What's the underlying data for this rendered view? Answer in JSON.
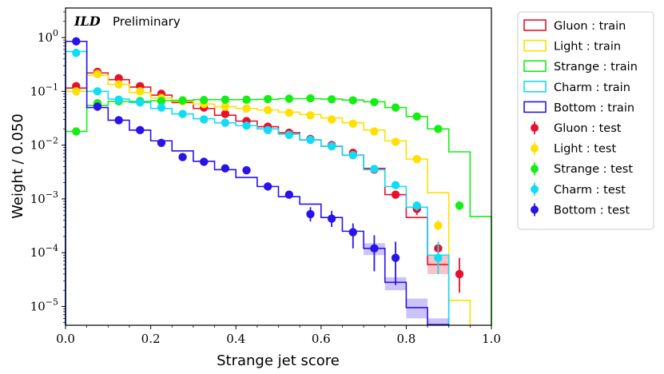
{
  "chart_data": {
    "type": "histogram",
    "xlabel": "Strange jet score",
    "ylabel": "Weight / 0.050",
    "xlim": [
      0.0,
      1.0
    ],
    "ylim_log10": [
      -5.35,
      0.55
    ],
    "yscale": "log",
    "xticks": [
      0.0,
      0.2,
      0.4,
      0.6,
      0.8,
      1.0
    ],
    "xtick_labels": [
      "0.0",
      "0.2",
      "0.4",
      "0.6",
      "0.8",
      "1.0"
    ],
    "yticks": [
      {
        "exp": 0,
        "base": "10",
        "sup": "0"
      },
      {
        "exp": -1,
        "base": "10",
        "sup": "−1"
      },
      {
        "exp": -2,
        "base": "10",
        "sup": "−2"
      },
      {
        "exp": -3,
        "base": "10",
        "sup": "−3"
      },
      {
        "exp": -4,
        "base": "10",
        "sup": "−4"
      },
      {
        "exp": -5,
        "base": "10",
        "sup": "−5"
      }
    ],
    "annotation": {
      "experiment": "ILD",
      "status": "Preliminary"
    },
    "bin_edges": [
      0.0,
      0.05,
      0.1,
      0.15,
      0.2,
      0.25,
      0.3,
      0.35,
      0.4,
      0.45,
      0.5,
      0.55,
      0.6,
      0.65,
      0.7,
      0.75,
      0.8,
      0.85,
      0.9,
      0.95,
      1.0
    ],
    "train": [
      {
        "name": "Gluon : train",
        "color": "#e8112d",
        "values": [
          0.115,
          0.22,
          0.165,
          0.12,
          0.085,
          0.062,
          0.048,
          0.036,
          0.028,
          0.022,
          0.017,
          0.0125,
          0.0095,
          0.0065,
          0.0037,
          0.0012,
          0.00045,
          6e-05,
          null,
          null
        ]
      },
      {
        "name": "Light : train",
        "color": "#ffe000",
        "values": [
          0.1,
          0.2,
          0.135,
          0.095,
          0.075,
          0.065,
          0.058,
          0.052,
          0.048,
          0.045,
          0.041,
          0.037,
          0.032,
          0.026,
          0.019,
          0.012,
          0.0055,
          0.0013,
          1.3e-05,
          null
        ]
      },
      {
        "name": "Strange : train",
        "color": "#15ee15",
        "values": [
          0.018,
          0.055,
          0.065,
          0.065,
          0.067,
          0.068,
          0.07,
          0.07,
          0.07,
          0.071,
          0.073,
          0.073,
          0.072,
          0.069,
          0.064,
          0.05,
          0.034,
          0.02,
          0.0075,
          0.00047
        ]
      },
      {
        "name": "Charm : train",
        "color": "#12dcf4",
        "values": [
          0.55,
          0.1,
          0.072,
          0.062,
          0.048,
          0.038,
          0.031,
          0.026,
          0.023,
          0.02,
          0.016,
          0.0125,
          0.0095,
          0.0065,
          0.0035,
          0.0017,
          0.0007,
          9e-05,
          null,
          null
        ]
      },
      {
        "name": "Bottom : train",
        "color": "#2a12e8",
        "values": [
          0.85,
          0.05,
          0.029,
          0.019,
          0.012,
          0.0078,
          0.005,
          0.0035,
          0.0025,
          0.0017,
          0.0011,
          0.0008,
          0.00045,
          0.00025,
          0.00012,
          2.8e-05,
          9.5e-06,
          4.6e-06,
          null,
          null
        ]
      }
    ],
    "train_uncertainty_bands": [
      {
        "series": "Bottom : train",
        "bin_lo": [
          0.7,
          0.75,
          0.8,
          0.85
        ],
        "lo": [
          9e-05,
          2e-05,
          6e-06,
          3.5e-06
        ],
        "hi": [
          0.00015,
          3.5e-05,
          1.4e-05,
          6e-06
        ]
      },
      {
        "series": "Gluon : train",
        "bin_lo": [
          0.85
        ],
        "lo": [
          4e-05
        ],
        "hi": [
          9e-05
        ]
      }
    ],
    "test": [
      {
        "name": "Gluon : test",
        "color": "#e8112d",
        "points": [
          [
            0.025,
            0.125
          ],
          [
            0.075,
            0.23
          ],
          [
            0.125,
            0.175
          ],
          [
            0.175,
            0.125
          ],
          [
            0.225,
            0.09
          ],
          [
            0.275,
            0.065
          ],
          [
            0.325,
            0.05
          ],
          [
            0.375,
            0.038
          ],
          [
            0.425,
            0.028
          ],
          [
            0.475,
            0.022
          ],
          [
            0.525,
            0.017
          ],
          [
            0.575,
            0.013
          ],
          [
            0.625,
            0.01
          ],
          [
            0.675,
            0.0072
          ],
          [
            0.725,
            0.0035
          ],
          [
            0.775,
            0.0012
          ],
          [
            0.825,
            0.00065
          ],
          [
            0.875,
            0.00012
          ],
          [
            0.925,
            4e-05
          ]
        ],
        "errors": [
          [
            0.925,
            1.8e-05,
            8e-05
          ],
          [
            0.875,
            9e-05,
            0.00016
          ],
          [
            0.825,
            0.0005,
            0.0008
          ]
        ]
      },
      {
        "name": "Light : test",
        "color": "#ffe000",
        "points": [
          [
            0.025,
            0.1
          ],
          [
            0.075,
            0.21
          ],
          [
            0.125,
            0.135
          ],
          [
            0.175,
            0.1
          ],
          [
            0.225,
            0.075
          ],
          [
            0.275,
            0.065
          ],
          [
            0.325,
            0.058
          ],
          [
            0.375,
            0.052
          ],
          [
            0.425,
            0.048
          ],
          [
            0.475,
            0.045
          ],
          [
            0.525,
            0.04
          ],
          [
            0.575,
            0.036
          ],
          [
            0.625,
            0.03
          ],
          [
            0.675,
            0.025
          ],
          [
            0.725,
            0.018
          ],
          [
            0.775,
            0.0115
          ],
          [
            0.825,
            0.0055
          ],
          [
            0.875,
            0.00032
          ]
        ],
        "errors": [
          [
            0.875,
            0.00026,
            0.0004
          ]
        ]
      },
      {
        "name": "Strange : test",
        "color": "#15ee15",
        "points": [
          [
            0.025,
            0.018
          ],
          [
            0.075,
            0.06
          ],
          [
            0.125,
            0.065
          ],
          [
            0.175,
            0.066
          ],
          [
            0.225,
            0.066
          ],
          [
            0.275,
            0.068
          ],
          [
            0.325,
            0.069
          ],
          [
            0.375,
            0.07
          ],
          [
            0.425,
            0.07
          ],
          [
            0.475,
            0.072
          ],
          [
            0.525,
            0.073
          ],
          [
            0.575,
            0.074
          ],
          [
            0.625,
            0.071
          ],
          [
            0.675,
            0.068
          ],
          [
            0.725,
            0.063
          ],
          [
            0.775,
            0.05
          ],
          [
            0.825,
            0.034
          ],
          [
            0.875,
            0.02
          ],
          [
            0.925,
            0.00075
          ]
        ],
        "errors": [
          [
            0.925,
            0.00062,
            0.0009
          ]
        ]
      },
      {
        "name": "Charm : test",
        "color": "#12dcf4",
        "points": [
          [
            0.025,
            0.52
          ],
          [
            0.075,
            0.1
          ],
          [
            0.125,
            0.07
          ],
          [
            0.175,
            0.062
          ],
          [
            0.225,
            0.05
          ],
          [
            0.275,
            0.038
          ],
          [
            0.325,
            0.03
          ],
          [
            0.375,
            0.026
          ],
          [
            0.425,
            0.023
          ],
          [
            0.475,
            0.019
          ],
          [
            0.525,
            0.0155
          ],
          [
            0.575,
            0.0125
          ],
          [
            0.625,
            0.0095
          ],
          [
            0.675,
            0.0065
          ],
          [
            0.725,
            0.0036
          ],
          [
            0.775,
            0.0018
          ],
          [
            0.825,
            0.00075
          ],
          [
            0.875,
            8e-05
          ]
        ],
        "errors": [
          [
            0.875,
            4e-05,
            0.00016
          ],
          [
            0.825,
            0.0006,
            0.0009
          ]
        ]
      },
      {
        "name": "Bottom : test",
        "color": "#2a12e8",
        "points": [
          [
            0.025,
            0.85
          ],
          [
            0.075,
            0.052
          ],
          [
            0.125,
            0.029
          ],
          [
            0.175,
            0.019
          ],
          [
            0.225,
            0.011
          ],
          [
            0.275,
            0.006
          ],
          [
            0.325,
            0.0049
          ],
          [
            0.375,
            0.0037
          ],
          [
            0.425,
            0.0034
          ],
          [
            0.475,
            0.0017
          ],
          [
            0.525,
            0.0012
          ],
          [
            0.575,
            0.00052
          ],
          [
            0.625,
            0.00043
          ],
          [
            0.675,
            0.00024
          ],
          [
            0.725,
            0.00012
          ],
          [
            0.775,
            8e-05
          ]
        ],
        "errors": [
          [
            0.575,
            0.00038,
            0.0007
          ],
          [
            0.625,
            0.0003,
            0.0006
          ],
          [
            0.675,
            0.00012,
            0.00035
          ],
          [
            0.725,
            4.5e-05,
            0.00021
          ],
          [
            0.775,
            2.5e-05,
            0.00016
          ]
        ]
      }
    ],
    "legend": {
      "position": "outside-right-top",
      "entries": [
        {
          "label": "Gluon : train",
          "style": "box",
          "color": "#e8112d"
        },
        {
          "label": "Light : train",
          "style": "box",
          "color": "#ffe000"
        },
        {
          "label": "Strange : train",
          "style": "box",
          "color": "#15ee15"
        },
        {
          "label": "Charm : train",
          "style": "box",
          "color": "#12dcf4"
        },
        {
          "label": "Bottom : train",
          "style": "box",
          "color": "#2a12e8"
        },
        {
          "label": "Gluon : test",
          "style": "marker",
          "color": "#e8112d"
        },
        {
          "label": "Light : test",
          "style": "marker",
          "color": "#ffe000"
        },
        {
          "label": "Strange : test",
          "style": "marker",
          "color": "#15ee15"
        },
        {
          "label": "Charm : test",
          "style": "marker",
          "color": "#12dcf4"
        },
        {
          "label": "Bottom : test",
          "style": "marker",
          "color": "#2a12e8"
        }
      ]
    }
  }
}
